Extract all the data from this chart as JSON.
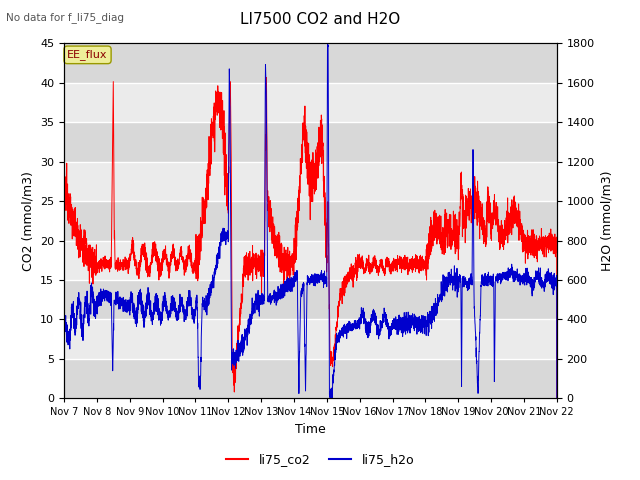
{
  "title": "LI7500 CO2 and H2O",
  "subtitle": "No data for f_li75_diag",
  "xlabel": "Time",
  "ylabel_left": "CO2 (mmol/m3)",
  "ylabel_right": "H2O (mmol/m3)",
  "co2_color": "#FF0000",
  "h2o_color": "#0000CD",
  "fig_bg_color": "#FFFFFF",
  "plot_bg_color": "#EBEBEB",
  "grid_color": "#FFFFFF",
  "legend_entries": [
    "li75_co2",
    "li75_h2o"
  ],
  "ylim_left": [
    0,
    45
  ],
  "ylim_right": [
    0,
    1800
  ]
}
